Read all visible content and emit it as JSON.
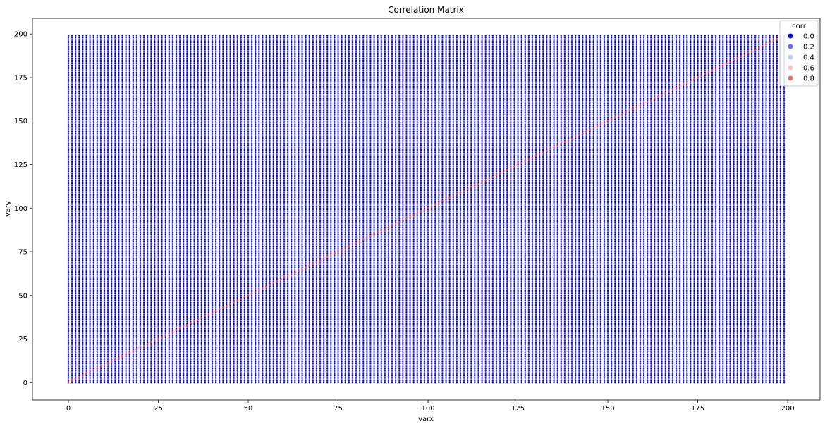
{
  "chart_data": {
    "type": "scatter",
    "title": "Correlation Matrix",
    "xlabel": "varx",
    "ylabel": "vary",
    "xlim": [
      -10,
      209
    ],
    "ylim": [
      -10,
      209
    ],
    "xticks": [
      0,
      25,
      50,
      75,
      100,
      125,
      150,
      175,
      200
    ],
    "yticks": [
      0,
      25,
      50,
      75,
      100,
      125,
      150,
      175,
      200
    ],
    "grid": false,
    "legend": {
      "title": "corr",
      "placement": "top-right",
      "entries": [
        {
          "label": "0.0",
          "color": "#0000cc"
        },
        {
          "label": "0.2",
          "color": "#6a6af0"
        },
        {
          "label": "0.4",
          "color": "#c9c9f7"
        },
        {
          "label": "0.6",
          "color": "#f5c8c8"
        },
        {
          "label": "0.8",
          "color": "#ea6f6f"
        }
      ]
    },
    "grid_points": {
      "x_range": [
        0,
        199
      ],
      "y_range": [
        0,
        199
      ],
      "step": 1,
      "off_diagonal_corr": 0.0,
      "off_diagonal_color": "#0000cc"
    },
    "diagonal_points": {
      "x_range": [
        0,
        199
      ],
      "corr": 1.0,
      "color": "#ff2a2a"
    }
  }
}
